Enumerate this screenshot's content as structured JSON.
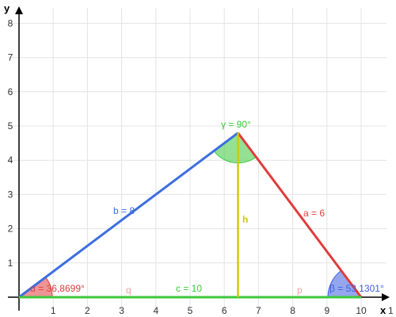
{
  "axes": {
    "x_label": "x",
    "y_label": "y",
    "x_range": [
      0,
      10
    ],
    "y_range": [
      0,
      8
    ],
    "grid": true
  },
  "triangle": {
    "vertices": {
      "A": [
        0,
        0
      ],
      "B": [
        10,
        0
      ],
      "C": [
        6.4,
        4.8
      ]
    },
    "foot": [
      6.4,
      0
    ],
    "sides": {
      "a": {
        "label": "a = 6",
        "color": "#e03c3c"
      },
      "b": {
        "label": "b = 8",
        "color": "#3c6ee0"
      },
      "c": {
        "label": "c = 10",
        "color": "#3cc83c"
      }
    },
    "angles": {
      "alpha": {
        "label": "α = 36,8699°",
        "color": "#e03c3c"
      },
      "beta": {
        "label": "β = 53,1301°",
        "color": "#3c5ee0"
      },
      "gamma": {
        "label": "γ = 90°",
        "color": "#3cc83c"
      }
    },
    "height": {
      "label": "h",
      "color": "#cccc00"
    },
    "segments": {
      "q": {
        "label": "q",
        "color": "#f4a0a0"
      },
      "p": {
        "label": "p",
        "color": "#f4a0a0"
      }
    }
  },
  "labels": {
    "x_tick_extra": "1"
  }
}
